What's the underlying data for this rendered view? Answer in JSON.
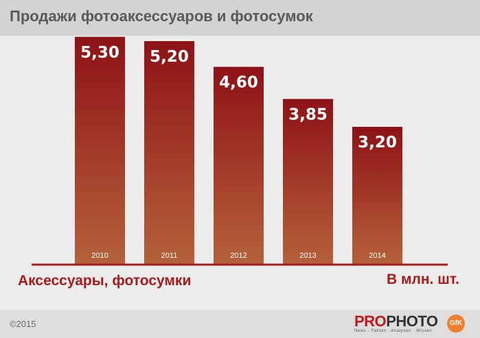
{
  "title": "Продажи фотоаксессуаров и фотосумок",
  "series_label": "Аксессуары, фотосумки",
  "unit_label": "В млн. шт.",
  "copyright": "©2015",
  "logo": {
    "pro": "PRO",
    "photo": "PHOTO",
    "tagline": "News · Fakten · Analysen · Wissen",
    "partner": "GfK"
  },
  "colors": {
    "bar_top": "#8e1216",
    "bar_bottom": "#b5613a",
    "accent": "#a51c1c",
    "background": "#ececec"
  },
  "chart_data": {
    "type": "bar",
    "title": "Продажи фотоаксессуаров и фотосумок",
    "categories": [
      "2010",
      "2011",
      "2012",
      "2013",
      "2014"
    ],
    "values": [
      5.3,
      5.2,
      4.6,
      3.85,
      3.2
    ],
    "value_labels": [
      "5,30",
      "5,20",
      "4,60",
      "3,85",
      "3,20"
    ],
    "ylabel": "В млн. шт.",
    "ylim": [
      0,
      6
    ],
    "grid": false,
    "legend": "none"
  }
}
